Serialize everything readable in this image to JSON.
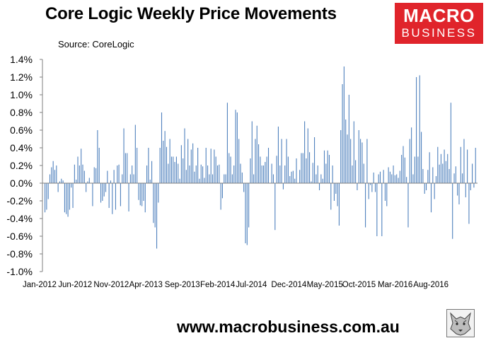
{
  "title": "Core Logic Weekly Price Movements",
  "source": "Source: CoreLogic",
  "logo": {
    "line1": "MACRO",
    "line2": "BUSINESS",
    "color": "#e0242b"
  },
  "footer": "www.macrobusiness.com.au",
  "chart_data": {
    "type": "bar",
    "title": "Core Logic Weekly Price Movements",
    "xlabel": "",
    "ylabel": "",
    "ylim": [
      -1.0,
      1.4
    ],
    "y_ticks": [
      "1.4%",
      "1.2%",
      "1.0%",
      "0.8%",
      "0.6%",
      "0.4%",
      "0.2%",
      "0.0%",
      "-0.2%",
      "-0.4%",
      "-0.6%",
      "-0.8%",
      "-1.0%"
    ],
    "x_ticks": [
      "Jan-2012",
      "Jun-2012",
      "Nov-2012",
      "Apr-2013",
      "Sep-2013",
      "Feb-2014",
      "Jul-2014",
      "Dec-2014",
      "May-2015",
      "Oct-2015",
      "Mar-2016",
      "Aug-2016"
    ],
    "bar_color": "#4f81bd",
    "grid": false,
    "series": [
      {
        "values": [
          -0.33,
          -0.3,
          -0.18,
          0.1,
          0.18,
          0.25,
          0.15,
          0.2,
          -0.1,
          0.02,
          0.05,
          0.03,
          -0.33,
          -0.35,
          -0.38,
          -0.3,
          -0.05,
          -0.28,
          0.21,
          0.04,
          0.3,
          0.2,
          0.39,
          0.21,
          0.14,
          -0.1,
          0.02,
          0.06,
          0.0,
          -0.26,
          0.18,
          0.17,
          0.6,
          0.4,
          -0.22,
          -0.2,
          -0.15,
          -0.1,
          0.14,
          -0.28,
          0.03,
          -0.35,
          0.15,
          -0.3,
          0.2,
          0.21,
          -0.26,
          0.1,
          0.62,
          0.34,
          0.34,
          -0.32,
          0.1,
          0.2,
          0.1,
          0.66,
          0.4,
          -0.19,
          -0.25,
          -0.26,
          -0.2,
          -0.33,
          0.2,
          0.4,
          0.04,
          0.25,
          -0.45,
          -0.5,
          -0.74,
          -0.22,
          0.4,
          0.8,
          0.48,
          0.59,
          0.41,
          0.22,
          0.5,
          0.3,
          0.3,
          0.24,
          0.3,
          0.22,
          0.05,
          0.43,
          0.28,
          0.62,
          0.15,
          0.5,
          0.2,
          0.38,
          0.45,
          0.13,
          0.2,
          0.4,
          0.05,
          0.21,
          0.19,
          0.06,
          0.4,
          0.2,
          0.1,
          0.39,
          0.1,
          0.38,
          0.3,
          0.2,
          0.21,
          -0.3,
          -0.17,
          0.1,
          0.1,
          0.91,
          0.34,
          0.3,
          0.1,
          0.2,
          0.83,
          0.8,
          0.5,
          0.22,
          0.12,
          -0.1,
          -0.68,
          -0.7,
          -0.5,
          0.28,
          0.7,
          0.1,
          0.5,
          0.65,
          0.44,
          0.3,
          0.2,
          0.2,
          0.24,
          0.3,
          0.4,
          0.0,
          0.22,
          0.1,
          -0.53,
          0.31,
          0.64,
          0.2,
          0.5,
          -0.07,
          0.2,
          0.5,
          0.3,
          0.08,
          0.13,
          0.14,
          0.05,
          0.28,
          0.0,
          0.15,
          0.34,
          0.34,
          0.7,
          0.28,
          0.62,
          0.35,
          0.02,
          0.23,
          0.52,
          0.1,
          0.2,
          -0.08,
          0.1,
          0.05,
          0.37,
          0.22,
          0.37,
          0.32,
          -0.3,
          0.2,
          -0.2,
          -0.12,
          -0.26,
          -0.48,
          0.6,
          1.12,
          1.32,
          0.72,
          0.55,
          1.0,
          0.5,
          0.2,
          0.7,
          0.26,
          -0.08,
          0.6,
          0.5,
          0.46,
          0.22,
          -0.5,
          0.5,
          -0.18,
          -0.02,
          -0.1,
          0.12,
          -0.1,
          -0.6,
          0.1,
          0.13,
          -0.6,
          0.15,
          -0.2,
          -0.26,
          0.18,
          0.13,
          0.1,
          0.2,
          0.09,
          0.1,
          0.06,
          0.14,
          0.32,
          0.42,
          0.29,
          0.07,
          -0.5,
          0.5,
          0.63,
          0.1,
          0.3,
          1.2,
          0.3,
          1.22,
          0.58,
          0.16,
          -0.12,
          -0.08,
          0.15,
          0.35,
          -0.33,
          0.18,
          -0.18,
          0.08,
          0.41,
          0.21,
          0.33,
          0.22,
          0.38,
          0.25,
          0.33,
          0.16,
          0.91,
          -0.63,
          0.11,
          0.19,
          -0.14,
          -0.24,
          0.41,
          0.11,
          0.5,
          -0.16,
          0.38,
          -0.46,
          -0.08,
          0.22,
          -0.05,
          0.4
        ]
      }
    ]
  }
}
